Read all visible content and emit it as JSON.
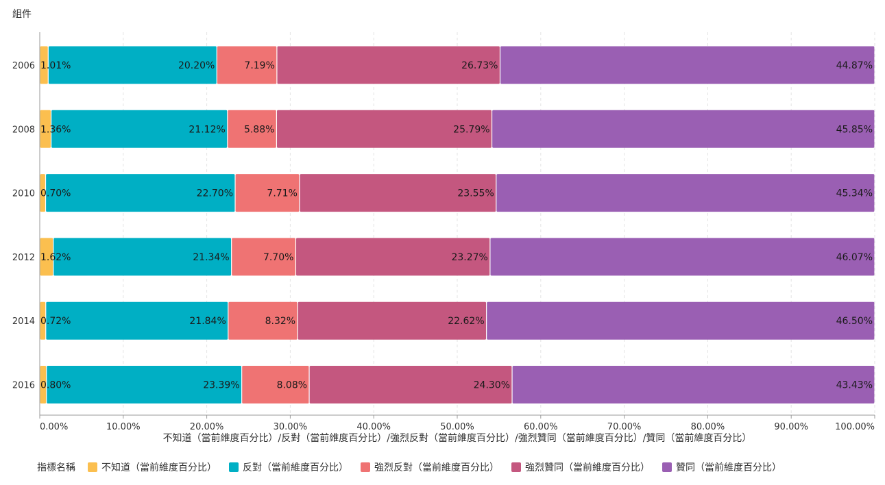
{
  "widget_title": "組件",
  "chart_data": {
    "type": "bar",
    "orientation": "horizontal",
    "stacked": true,
    "categories": [
      "2006",
      "2008",
      "2010",
      "2012",
      "2014",
      "2016"
    ],
    "series": [
      {
        "name": "不知道（當前維度百分比）",
        "color": "#FBBF4F",
        "values": [
          1.01,
          1.36,
          0.7,
          1.62,
          0.72,
          0.8
        ]
      },
      {
        "name": "反對（當前維度百分比）",
        "color": "#00AFC4",
        "values": [
          20.2,
          21.12,
          22.7,
          21.34,
          21.84,
          23.39
        ]
      },
      {
        "name": "強烈反對（當前維度百分比）",
        "color": "#EF7373",
        "values": [
          7.19,
          5.88,
          7.71,
          7.7,
          8.32,
          8.08
        ]
      },
      {
        "name": "強烈贊同（當前維度百分比）",
        "color": "#C4577F",
        "values": [
          26.73,
          25.79,
          23.55,
          23.27,
          22.62,
          24.3
        ]
      },
      {
        "name": "贊同（當前維度百分比）",
        "color": "#9A5FB3",
        "values": [
          44.87,
          45.85,
          45.34,
          46.07,
          46.5,
          43.43
        ]
      }
    ],
    "xlim": [
      0,
      100
    ],
    "x_ticks": [
      "0.00%",
      "10.00%",
      "20.00%",
      "30.00%",
      "40.00%",
      "50.00%",
      "60.00%",
      "70.00%",
      "80.00%",
      "90.00%",
      "100.00%"
    ],
    "xlabel": "不知道（當前維度百分比）/反對（當前維度百分比）/強烈反對（當前維度百分比）/強烈贊同（當前維度百分比）/贊同（當前維度百分比）",
    "legend_title": "指標名稱",
    "grid": "vertical dashed"
  }
}
